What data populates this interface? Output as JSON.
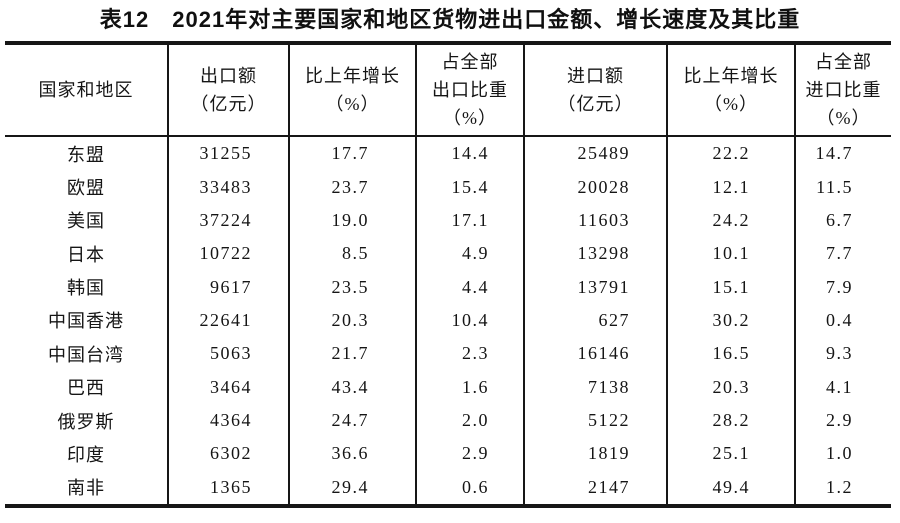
{
  "title": "表12　2021年对主要国家和地区货物进出口金额、增长速度及其比重",
  "table": {
    "headers": [
      [
        "国家和地区"
      ],
      [
        "出口额",
        "（亿元）"
      ],
      [
        "比上年增长",
        "（%）"
      ],
      [
        "占全部",
        "出口比重",
        "（%）"
      ],
      [
        "进口额",
        "（亿元）"
      ],
      [
        "比上年增长",
        "（%）"
      ],
      [
        "占全部",
        "进口比重",
        "（%）"
      ]
    ],
    "rows": [
      [
        "东盟",
        "31255",
        "17.7",
        "14.4",
        "25489",
        "22.2",
        "14.7"
      ],
      [
        "欧盟",
        "33483",
        "23.7",
        "15.4",
        "20028",
        "12.1",
        "11.5"
      ],
      [
        "美国",
        "37224",
        "19.0",
        "17.1",
        "11603",
        "24.2",
        "6.7"
      ],
      [
        "日本",
        "10722",
        "8.5",
        "4.9",
        "13298",
        "10.1",
        "7.7"
      ],
      [
        "韩国",
        "9617",
        "23.5",
        "4.4",
        "13791",
        "15.1",
        "7.9"
      ],
      [
        "中国香港",
        "22641",
        "20.3",
        "10.4",
        "627",
        "30.2",
        "0.4"
      ],
      [
        "中国台湾",
        "5063",
        "21.7",
        "2.3",
        "16146",
        "16.5",
        "9.3"
      ],
      [
        "巴西",
        "3464",
        "43.4",
        "1.6",
        "7138",
        "20.3",
        "4.1"
      ],
      [
        "俄罗斯",
        "4364",
        "24.7",
        "2.0",
        "5122",
        "28.2",
        "2.9"
      ],
      [
        "印度",
        "6302",
        "36.6",
        "2.9",
        "1819",
        "25.1",
        "1.0"
      ],
      [
        "南非",
        "1365",
        "29.4",
        "0.6",
        "2147",
        "49.4",
        "1.2"
      ]
    ]
  }
}
